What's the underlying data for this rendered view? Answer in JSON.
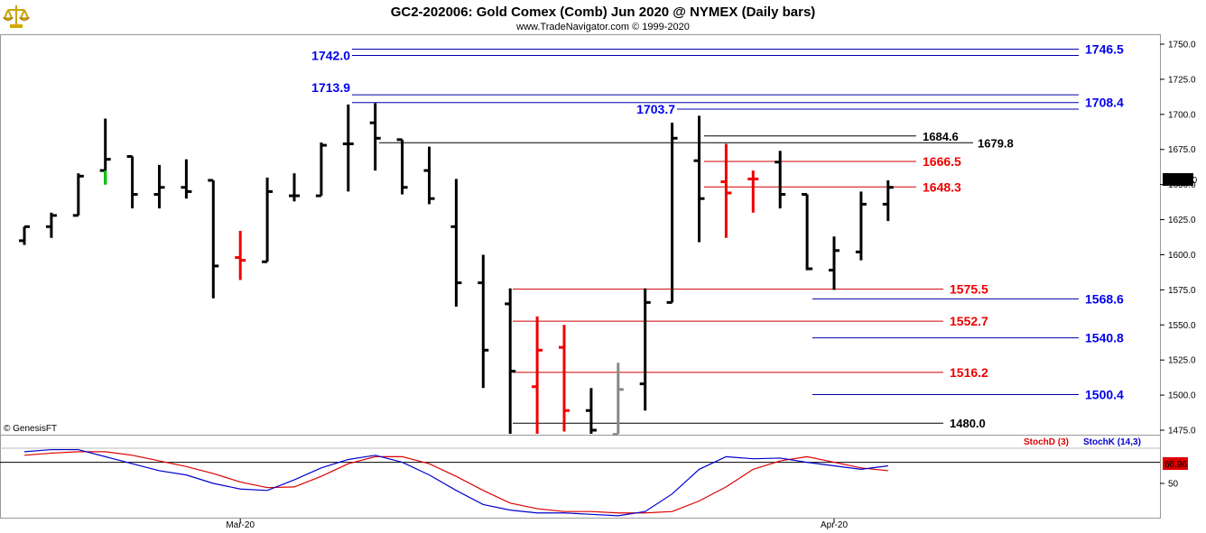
{
  "header": {
    "title": "GC2-202006:  Gold Comex (Comb) Jun 2020 @ NYMEX  (Daily bars)",
    "subtitle": "www.TradeNavigator.com © 1999-2020",
    "copyright": "© GenesisFT",
    "logo_icon": "gold-scale-logo-icon"
  },
  "chart_data": [
    {
      "type": "bar",
      "subtype": "ohlc",
      "title": "GC2-202006:  Gold Comex (Comb) Jun 2020 @ NYMEX  (Daily bars)",
      "xlabel": "",
      "ylabel": "",
      "ylim": [
        1470,
        1757
      ],
      "yticks": [
        1475,
        1500,
        1525,
        1550,
        1575,
        1600,
        1625,
        1650,
        1675,
        1700,
        1725,
        1750
      ],
      "ytick_labels": [
        "1475.0",
        "1500.0",
        "1525.0",
        "1550.0",
        "1575.0",
        "1600.0",
        "1625.0",
        "1650.0",
        "1675.0",
        "1700.0",
        "1725.0",
        "1750.0"
      ],
      "xtick_labels": [
        {
          "label": "Mar-20",
          "bar": 8
        },
        {
          "label": "Apr-20",
          "bar": 30
        }
      ],
      "last_price": "1648.80",
      "colors": {
        "up": "#000000",
        "down_red": "#ee0000",
        "green": "#00cc00",
        "gray": "#888888",
        "blue": "#0000cc",
        "red_line": "#cc0000"
      },
      "bars": [
        {
          "o": 1610,
          "h": 1620,
          "l": 1607,
          "c": 1620,
          "color": "#000000"
        },
        {
          "o": 1620,
          "h": 1630,
          "l": 1612,
          "c": 1628,
          "color": "#000000"
        },
        {
          "o": 1628,
          "h": 1658,
          "l": 1628,
          "c": 1656,
          "color": "#000000"
        },
        {
          "o": 1660,
          "h": 1697,
          "l": 1650,
          "c": 1668,
          "color": "#000000"
        },
        {
          "o": 1670,
          "h": 1670,
          "l": 1633,
          "c": 1643,
          "color": "#000000"
        },
        {
          "o": 1643,
          "h": 1664,
          "l": 1633,
          "c": 1648,
          "color": "#000000"
        },
        {
          "o": 1648,
          "h": 1668,
          "l": 1640,
          "c": 1645,
          "color": "#000000"
        },
        {
          "o": 1653,
          "h": 1653,
          "l": 1569,
          "c": 1592,
          "color": "#000000"
        },
        {
          "o": 1598,
          "h": 1617,
          "l": 1582,
          "c": 1596,
          "color": "#ee0000"
        },
        {
          "o": 1595,
          "h": 1655,
          "l": 1595,
          "c": 1645,
          "color": "#000000"
        },
        {
          "o": 1642,
          "h": 1658,
          "l": 1638,
          "c": 1642,
          "color": "#000000"
        },
        {
          "o": 1642,
          "h": 1680,
          "l": 1642,
          "c": 1678,
          "color": "#000000"
        },
        {
          "o": 1679,
          "h": 1707,
          "l": 1645,
          "c": 1679,
          "color": "#000000"
        },
        {
          "o": 1694,
          "h": 1708,
          "l": 1660,
          "c": 1683,
          "color": "#000000"
        },
        {
          "o": 1682,
          "h": 1682,
          "l": 1643,
          "c": 1648,
          "color": "#000000"
        },
        {
          "o": 1660,
          "h": 1677,
          "l": 1636,
          "c": 1640,
          "color": "#000000"
        },
        {
          "o": 1620,
          "h": 1654,
          "l": 1563,
          "c": 1580,
          "color": "#000000"
        },
        {
          "o": 1580,
          "h": 1600,
          "l": 1505,
          "c": 1532,
          "color": "#000000"
        },
        {
          "o": 1565,
          "h": 1576,
          "l": 1472,
          "c": 1517,
          "color": "#000000"
        },
        {
          "o": 1506,
          "h": 1556,
          "l": 1472,
          "c": 1532,
          "color": "#ee0000"
        },
        {
          "o": 1534,
          "h": 1550,
          "l": 1474,
          "c": 1489,
          "color": "#ee0000"
        },
        {
          "o": 1489,
          "h": 1505,
          "l": 1472,
          "c": 1475,
          "color": "#000000"
        },
        {
          "o": 1472,
          "h": 1523,
          "l": 1472,
          "c": 1504,
          "color": "#888888"
        },
        {
          "o": 1508,
          "h": 1576,
          "l": 1489,
          "c": 1566,
          "color": "#000000"
        },
        {
          "o": 1566,
          "h": 1694,
          "l": 1566,
          "c": 1683,
          "color": "#000000"
        },
        {
          "o": 1667,
          "h": 1699,
          "l": 1609,
          "c": 1640,
          "color": "#000000"
        },
        {
          "o": 1652,
          "h": 1679,
          "l": 1612,
          "c": 1644,
          "color": "#ee0000"
        },
        {
          "o": 1654,
          "h": 1660,
          "l": 1630,
          "c": 1654,
          "color": "#ee0000"
        },
        {
          "o": 1666,
          "h": 1674,
          "l": 1633,
          "c": 1643,
          "color": "#000000"
        },
        {
          "o": 1643,
          "h": 1643,
          "l": 1589,
          "c": 1590,
          "color": "#000000"
        },
        {
          "o": 1589,
          "h": 1613,
          "l": 1575,
          "c": 1603,
          "color": "#000000"
        },
        {
          "o": 1602,
          "h": 1645,
          "l": 1596,
          "c": 1636,
          "color": "#000000"
        },
        {
          "o": 1636,
          "h": 1653,
          "l": 1624,
          "c": 1648,
          "color": "#000000"
        }
      ],
      "levels": [
        {
          "label": "1746.5",
          "value": 1746.5,
          "color": "#0000cc",
          "side": "right",
          "style": "blue"
        },
        {
          "label": "1742.0",
          "value": 1742.0,
          "color": "#0000cc",
          "side": "left",
          "style": "blue"
        },
        {
          "label": "1713.9",
          "value": 1713.9,
          "color": "#0000cc",
          "side": "left",
          "style": "blue"
        },
        {
          "label": "1708.4",
          "value": 1708.4,
          "color": "#0000cc",
          "side": "right",
          "style": "blue"
        },
        {
          "label": "1703.7",
          "value": 1703.7,
          "color": "#0000cc",
          "side": "mid",
          "style": "blue"
        },
        {
          "label": "1684.6",
          "value": 1684.6,
          "color": "#000000",
          "side": "mid",
          "style": "black"
        },
        {
          "label": "1679.8",
          "value": 1679.8,
          "color": "#000000",
          "side": "mid2",
          "style": "black"
        },
        {
          "label": "1666.5",
          "value": 1666.5,
          "color": "#ee0000",
          "side": "mid",
          "style": "red"
        },
        {
          "label": "1648.3",
          "value": 1648.3,
          "color": "#ee0000",
          "side": "mid",
          "style": "red"
        },
        {
          "label": "1575.5",
          "value": 1575.5,
          "color": "#ee0000",
          "side": "mid",
          "style": "red"
        },
        {
          "label": "1568.6",
          "value": 1568.6,
          "color": "#0000cc",
          "side": "right",
          "style": "blue"
        },
        {
          "label": "1552.7",
          "value": 1552.7,
          "color": "#ee0000",
          "side": "mid",
          "style": "red"
        },
        {
          "label": "1540.8",
          "value": 1540.8,
          "color": "#0000cc",
          "side": "right",
          "style": "blue"
        },
        {
          "label": "1516.2",
          "value": 1516.2,
          "color": "#ee0000",
          "side": "mid",
          "style": "red"
        },
        {
          "label": "1500.4",
          "value": 1500.4,
          "color": "#0000cc",
          "side": "right",
          "style": "blue"
        },
        {
          "label": "1480.0",
          "value": 1480.0,
          "color": "#000000",
          "side": "mid",
          "style": "black"
        }
      ]
    },
    {
      "type": "line",
      "title": "",
      "ylim": [
        0,
        100
      ],
      "yticks": [
        50
      ],
      "ytick_labels": [
        "50"
      ],
      "last_value": "66.96",
      "series": [
        {
          "name": "StochD (3)",
          "color": "#dd0000",
          "values": [
            90,
            93,
            95,
            95,
            90,
            82,
            74,
            64,
            52,
            44,
            45,
            60,
            78,
            88,
            88,
            78,
            60,
            40,
            22,
            14,
            10,
            10,
            8,
            8,
            10,
            25,
            45,
            70,
            82,
            88,
            80,
            72,
            68
          ]
        },
        {
          "name": "StochK (14,3)",
          "color": "#0000cc",
          "values": [
            95,
            98,
            98,
            88,
            78,
            68,
            62,
            50,
            42,
            40,
            55,
            72,
            84,
            90,
            80,
            62,
            40,
            20,
            12,
            8,
            8,
            6,
            4,
            10,
            35,
            70,
            88,
            85,
            86,
            80,
            75,
            70,
            75
          ]
        }
      ]
    }
  ]
}
